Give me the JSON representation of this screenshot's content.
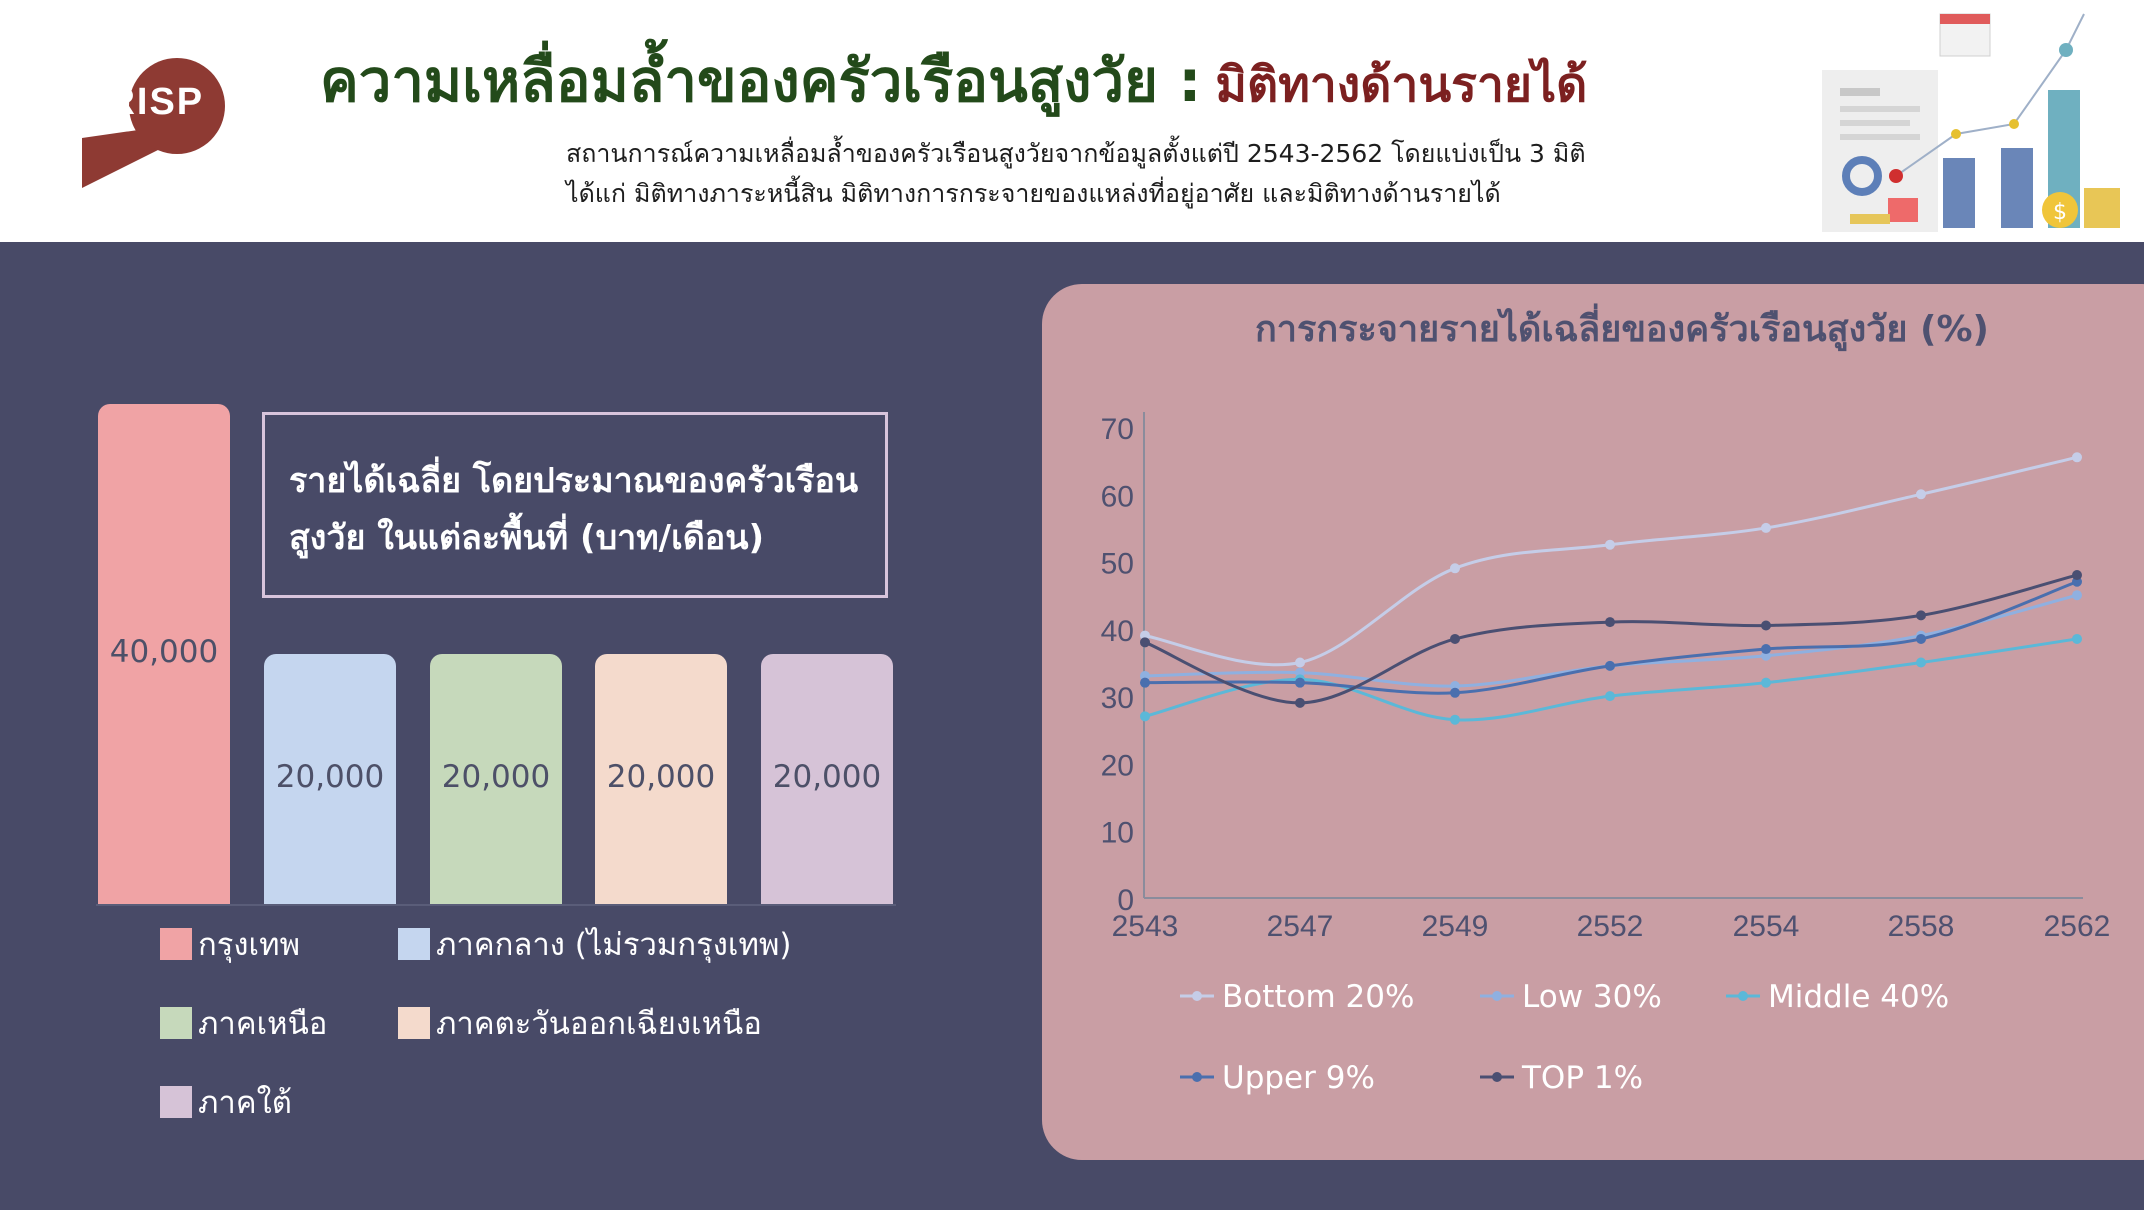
{
  "header": {
    "logo_text": "CRISP",
    "title_main": "ความเหลื่อมล้ำของครัวเรือนสูงวัย :",
    "title_sub": "มิติทางด้านรายได้",
    "description_line1": "สถานการณ์ความเหลื่อมล้ำของครัวเรือนสูงวัยจากข้อมูลตั้งแต่ปี 2543-2562 โดยแบ่งเป็น 3 มิติ",
    "description_line2": "ได้แก่ มิติทางภาระหนี้สิน มิติทางการกระจายของแหล่งที่อยู่อาศัย และมิติทางด้านรายได้"
  },
  "colors": {
    "background": "#484a67",
    "title_green": "#234a1a",
    "title_red": "#7c2020",
    "chart_panel": "#c99ea4",
    "logo_red": "#8e3a33"
  },
  "chart_data": [
    {
      "type": "bar",
      "title": "รายได้เฉลี่ย โดยประมาณของครัวเรือน สูงวัย ในแต่ละพื้นที่ (บาท/เดือน)",
      "title_line1": "รายได้เฉลี่ย โดยประมาณของครัวเรือน",
      "title_line2": "สูงวัย ในแต่ละพื้นที่ (บาท/เดือน)",
      "categories": [
        "กรุงเทพ",
        "ภาคกลาง (ไม่รวมกรุงเทพ)",
        "ภาคเหนือ",
        "ภาคตะวันออกเฉียงเหนือ",
        "ภาคใต้"
      ],
      "values": [
        40000,
        20000,
        20000,
        20000,
        20000
      ],
      "value_labels": [
        "40,000",
        "20,000",
        "20,000",
        "20,000",
        "20,000"
      ],
      "colors": [
        "#f0a3a5",
        "#c5d6ef",
        "#c6d9bb",
        "#f4dacc",
        "#d6c3d7"
      ],
      "legend_placement": "bottom",
      "grid": false
    },
    {
      "type": "line",
      "title": "การกระจายรายได้เฉลี่ยของครัวเรือนสูงวัย (%)",
      "x": [
        "2543",
        "2547",
        "2549",
        "2552",
        "2554",
        "2558",
        "2562"
      ],
      "ylim": [
        0,
        70
      ],
      "yticks": [
        "0",
        "10",
        "20",
        "30",
        "40",
        "50",
        "60",
        "70"
      ],
      "legend_placement": "bottom",
      "grid": false,
      "series": [
        {
          "name": "Bottom 20%",
          "color": "#c5cde8",
          "values": [
            39,
            35,
            49,
            52.5,
            55,
            60,
            65.5
          ]
        },
        {
          "name": "Low 30%",
          "color": "#8fb0e0",
          "values": [
            33,
            33.5,
            31.5,
            34.5,
            36,
            39,
            45
          ]
        },
        {
          "name": "Middle 40%",
          "color": "#5bb8d8",
          "values": [
            27,
            32.5,
            26.5,
            30,
            32,
            35,
            38.5
          ]
        },
        {
          "name": "Upper 9%",
          "color": "#4a6fae",
          "values": [
            32,
            32,
            30.5,
            34.5,
            37,
            38.5,
            47
          ]
        },
        {
          "name": "TOP 1%",
          "color": "#4a4f72",
          "values": [
            38,
            29,
            38.5,
            41,
            40.5,
            42,
            48
          ]
        }
      ]
    }
  ]
}
